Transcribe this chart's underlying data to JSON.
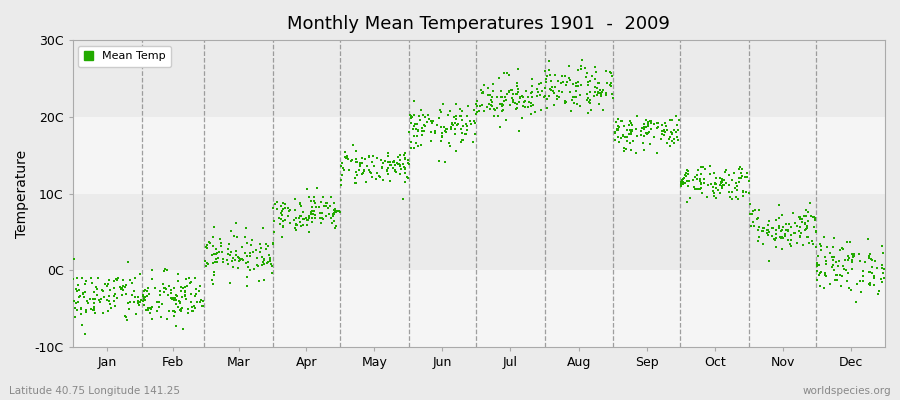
{
  "title": "Monthly Mean Temperatures 1901  -  2009",
  "ylabel": "Temperature",
  "subtitle_left": "Latitude 40.75 Longitude 141.25",
  "subtitle_right": "worldspecies.org",
  "legend_label": "Mean Temp",
  "dot_color": "#22aa00",
  "background_color": "#ebebeb",
  "plot_bg_color": "#ebebeb",
  "ylim": [
    -10,
    30
  ],
  "yticks": [
    -10,
    0,
    10,
    20,
    30
  ],
  "ytick_labels": [
    "-10C",
    "0C",
    "10C",
    "20C",
    "30C"
  ],
  "months": [
    "Jan",
    "Feb",
    "Mar",
    "Apr",
    "May",
    "Jun",
    "Jul",
    "Aug",
    "Sep",
    "Oct",
    "Nov",
    "Dec"
  ],
  "month_days": [
    31,
    28,
    31,
    30,
    31,
    30,
    31,
    31,
    30,
    31,
    30,
    31
  ],
  "monthly_mean_temps": [
    -3.5,
    -3.8,
    2.0,
    7.5,
    13.5,
    18.5,
    22.5,
    23.5,
    18.0,
    11.5,
    5.5,
    0.5
  ],
  "monthly_std": [
    1.8,
    1.8,
    1.5,
    1.2,
    1.2,
    1.5,
    1.5,
    1.5,
    1.2,
    1.2,
    1.5,
    1.8
  ],
  "n_years": 109,
  "seed": 42
}
